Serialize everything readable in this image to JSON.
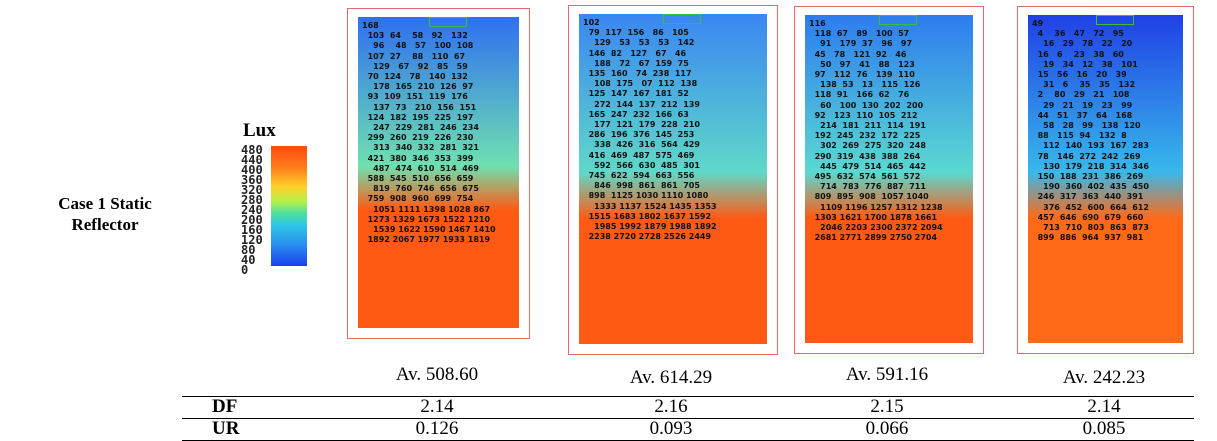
{
  "case_label": [
    "Case 1 Static",
    "Reflector"
  ],
  "legend": {
    "title": "Lux",
    "top_value": "480",
    "ticks": [
      "440",
      "400",
      "360",
      "320",
      "280",
      "240",
      "200",
      "160",
      "120",
      "80",
      "40",
      "0"
    ]
  },
  "panels": [
    {
      "average": "Av. 508.60",
      "colors": {
        "top": "#2f6ff0",
        "mid": "#6fe0b0",
        "low": "#ff5a14"
      },
      "values": "168\n  103  64    58   92   132\n    96    48   57   100  108\n  107  27    88   110  67\n    129   67   92   85   59\n  70  124   78   140  132\n    178  165  210  126  97\n  93  109  151  119  176\n    137  73   210  156  151\n  124  182  195  225  197\n    247  229  281  246  234\n  299  260  219  226  230\n    313  340  332  281  321\n  421  380  346  353  399\n    487  474  610  514  469\n  588  545  510  656  659\n    819  760  746  656  675\n  759  908  960  699  754\n    1051 1111 1398 1028 867\n  1273 1329 1673 1522 1210\n    1539 1622 1590 1467 1410\n  1892 2067 1977 1933 1819"
    },
    {
      "average": "Av. 614.29",
      "colors": {
        "top": "#3a86f2",
        "mid": "#5fd8c8",
        "low": "#ff5a14"
      },
      "values": "102\n  79  117  156   86   105\n    129   53   53   53   142\n  146  82   127   67   46\n    188   72   67  159  75\n  135  160   74  238  117\n    108  175   07  112  138\n  125  147  167  181  52\n    272  144  137  212  139\n  165  247  232  166  63\n    177  121  179  228  210\n  286  196  376  145  253\n    338  426  316  564  429\n  416  469  487  575  469\n    592  566  630  485  301\n  745  622  594  663  556\n    846  998  861  861  705\n  898  1125 1030 1110 1080\n    1333 1137 1524 1435 1353\n  1515 1683 1802 1637 1592\n    1985 1992 1879 1988 1892\n  2238 2720 2728 2526 2449"
    },
    {
      "average": "Av. 591.16",
      "colors": {
        "top": "#2e7cf0",
        "mid": "#5ad8d0",
        "low": "#ff5a14"
      },
      "values": "116\n  118  67   89   100  57\n    91   179  37   96   97\n  45   78   121  92   46\n    50   97   41   88   123\n  97   112  76   139  110\n    138  53   13   115  126\n  118  91   166  62   76\n    60   100  130  202  200\n  92   123  110  105  212\n    214  181  211  114  191\n  192  245  232  172  225\n    302  269  275  320  248\n  290  319  438  388  264\n    445  479  514  465  442\n  495  632  574  561  572\n    714  783  776  887  711\n  809  895  908  1057 1040\n    1109 1196 1257 1312 1238\n  1303 1621 1700 1878 1661\n    2046 2203 2300 2372 2094\n  2681 2771 2899 2750 2704"
    },
    {
      "average": "Av. 242.23",
      "colors": {
        "top": "#2040e6",
        "mid": "#38b8ea",
        "low": "#ff6a18"
      },
      "values": "49\n  4    36   47   72   95\n    16   29   78   22   20\n  16   6    23   38   60\n    19   34   12   38   101\n  15   56   16   20   39\n    31   6    35   35   132\n  2    80   29   21   108\n    29   21   19   23   99\n  44   51   37   64   168\n    58   28   99   138  120\n  88   115  94   132  8\n    112  140  193  167  283\n  78   146  272  242  269\n    130  179  218  314  346\n  150  188  231  386  269\n    190  360  402  435  450\n  246  317  363  440  391\n    376  452  600  664  612\n  457  646  690  679  660\n    713  710  803  863  873\n  899  886  964  937  981"
    }
  ],
  "table": {
    "rows": [
      {
        "label": "DF",
        "values": [
          "2.14",
          "2.16",
          "2.15",
          "2.14"
        ]
      },
      {
        "label": "UR",
        "values": [
          "0.126",
          "0.093",
          "0.066",
          "0.085"
        ]
      }
    ]
  }
}
